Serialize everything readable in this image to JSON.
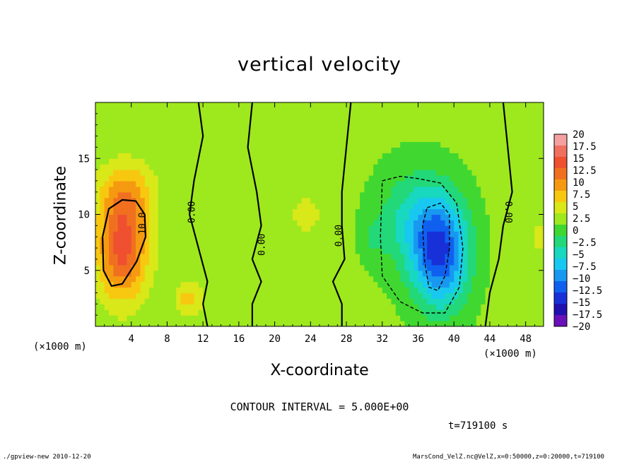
{
  "chart_data": {
    "type": "heatmap",
    "title": "vertical velocity",
    "xlabel": "X-coordinate",
    "ylabel": "Z-coordinate",
    "x_unit_left": "(×1000 m)",
    "x_unit_right": "(×1000 m)",
    "xlim": [
      0,
      50
    ],
    "ylim": [
      0,
      20
    ],
    "x_ticks": [
      4,
      8,
      12,
      16,
      20,
      24,
      28,
      32,
      36,
      40,
      44,
      48
    ],
    "x_tick_labels": [
      "4",
      "8",
      "12",
      "16",
      "20",
      "24",
      "28",
      "32",
      "36",
      "40",
      "44",
      "48"
    ],
    "y_ticks": [
      5,
      10,
      15
    ],
    "y_tick_labels": [
      "5",
      "10",
      "15"
    ],
    "colorbar": {
      "levels": [
        20,
        17.5,
        15,
        12.5,
        10,
        7.5,
        5,
        2.5,
        0,
        -2.5,
        -5,
        -7.5,
        -10,
        -12.5,
        -15,
        -17.5,
        -20
      ],
      "labels": [
        "20",
        "17.5",
        "15",
        "12.5",
        "10",
        "7.5",
        "5",
        "2.5",
        "0",
        "−2.5",
        "−5",
        "−7.5",
        "−10",
        "−12.5",
        "−15",
        "−17.5",
        "−20"
      ],
      "colors": [
        "#f4a0a0",
        "#f07060",
        "#ee5030",
        "#f07020",
        "#f59a10",
        "#f8c810",
        "#d8e818",
        "#9ee81e",
        "#40d830",
        "#22d878",
        "#18d8c0",
        "#18c8f0",
        "#1898f0",
        "#1060f0",
        "#1830d8",
        "#2010b0",
        "#6a10b8"
      ]
    },
    "field": [
      {
        "x": 3,
        "z": 7,
        "value": 13,
        "sigma_x": 2.0,
        "sigma_z": 3.2
      },
      {
        "x": 3.5,
        "z": 12,
        "value": 6,
        "sigma_x": 2.2,
        "sigma_z": 2.0
      },
      {
        "x": 10.5,
        "z": 2.5,
        "value": 6,
        "sigma_x": 1.0,
        "sigma_z": 1.0
      },
      {
        "x": 23.5,
        "z": 10,
        "value": 3,
        "sigma_x": 1.4,
        "sigma_z": 1.5
      },
      {
        "x": 38.5,
        "z": 6.5,
        "value": -15,
        "sigma_x": 2.2,
        "sigma_z": 3.4
      },
      {
        "x": 35.5,
        "z": 9.5,
        "value": -6,
        "sigma_x": 2.8,
        "sigma_z": 3.2
      },
      {
        "x": 31,
        "z": 8,
        "value": -2.5,
        "sigma_x": 1.0,
        "sigma_z": 1.4
      },
      {
        "x": 49.5,
        "z": 8,
        "value": 2,
        "sigma_x": 1.3,
        "sigma_z": 4.0
      }
    ],
    "contour_labels": [
      {
        "text": "10.0",
        "x": 5.3,
        "z": 9.2,
        "rotate": -90
      },
      {
        "text": "0.00",
        "x": 10.8,
        "z": 10.2,
        "rotate": -90
      },
      {
        "text": "0.00",
        "x": 18.6,
        "z": 7.3,
        "rotate": -90
      },
      {
        "text": "0.00",
        "x": 27.2,
        "z": 8.1,
        "rotate": -90
      },
      {
        "text": "0.00",
        "x": 46.0,
        "z": 10.2,
        "rotate": 90
      }
    ],
    "zero_contours": [
      [
        [
          11.5,
          20
        ],
        [
          12,
          17
        ],
        [
          11,
          13
        ],
        [
          10.5,
          10
        ],
        [
          11.5,
          7
        ],
        [
          12.5,
          4
        ],
        [
          12,
          2
        ],
        [
          12.5,
          0
        ]
      ],
      [
        [
          17.5,
          20
        ],
        [
          17,
          16
        ],
        [
          18,
          12
        ],
        [
          18.5,
          9
        ],
        [
          17.5,
          6
        ],
        [
          18.5,
          4
        ],
        [
          17.5,
          2
        ],
        [
          17.5,
          0
        ]
      ],
      [
        [
          28.5,
          20
        ],
        [
          28,
          16
        ],
        [
          27.5,
          12
        ],
        [
          27.5,
          9
        ],
        [
          27.8,
          6
        ],
        [
          26.5,
          4
        ],
        [
          27.5,
          2
        ],
        [
          27.5,
          0
        ]
      ],
      [
        [
          45.5,
          20
        ],
        [
          46,
          16
        ],
        [
          46.5,
          12
        ],
        [
          45.5,
          9
        ],
        [
          45,
          6
        ],
        [
          44,
          3
        ],
        [
          43.5,
          0
        ]
      ]
    ],
    "pos_contours": [
      [
        [
          0.8,
          8
        ],
        [
          1.5,
          10.5
        ],
        [
          3,
          11.3
        ],
        [
          4.5,
          11.2
        ],
        [
          5.5,
          10
        ],
        [
          5.6,
          8
        ],
        [
          4.6,
          5.8
        ],
        [
          3,
          3.8
        ],
        [
          1.8,
          3.6
        ],
        [
          0.9,
          5
        ],
        [
          0.8,
          8
        ]
      ]
    ],
    "neg_contours": [
      [
        [
          32,
          13
        ],
        [
          34,
          13.4
        ],
        [
          36,
          13.2
        ],
        [
          38.5,
          12.8
        ],
        [
          40.3,
          11
        ],
        [
          41,
          7
        ],
        [
          40.6,
          3.5
        ],
        [
          39,
          1.2
        ],
        [
          36.5,
          1.2
        ],
        [
          34,
          2.2
        ],
        [
          32,
          4.5
        ],
        [
          31.8,
          8
        ],
        [
          32,
          13
        ]
      ],
      [
        [
          37,
          10.6
        ],
        [
          38.5,
          11
        ],
        [
          39.5,
          10
        ],
        [
          39.5,
          7
        ],
        [
          39,
          4.5
        ],
        [
          38.2,
          3.2
        ],
        [
          37.2,
          3.5
        ],
        [
          36.7,
          6
        ],
        [
          36.5,
          9
        ],
        [
          37,
          10.6
        ]
      ]
    ],
    "legend_position": "right colorbar"
  },
  "contour_interval": "CONTOUR INTERVAL = 5.000E+00",
  "time_label": "t=719100 s",
  "footer_left": "./gpview-new  2010-12-20",
  "footer_right": "MarsCond_VelZ.nc@VelZ,x=0:50000,z=0:20000,t=719100"
}
